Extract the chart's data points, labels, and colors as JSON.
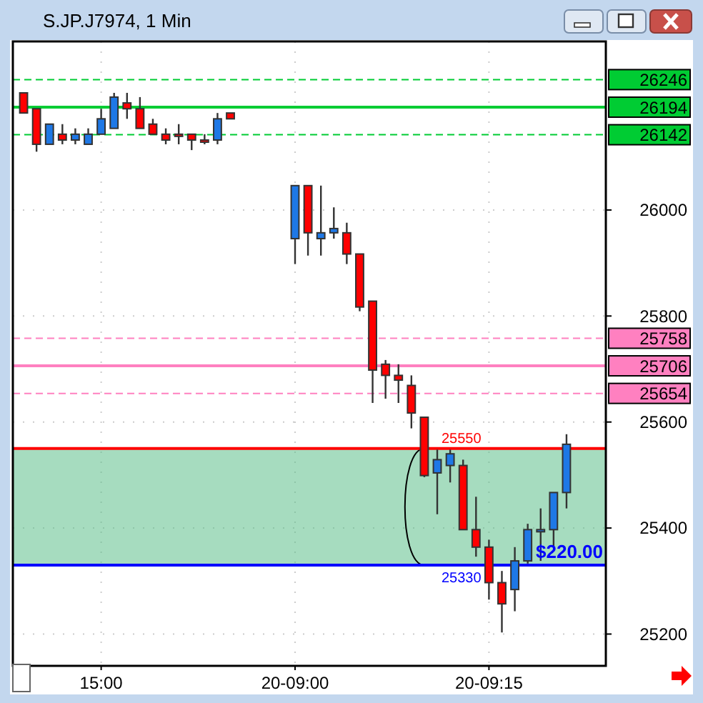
{
  "chart_data": {
    "type": "candlestick",
    "title": "S.JP.J7974, 1 Min",
    "categories": [
      null,
      null,
      null,
      null,
      null,
      null,
      "15:00",
      null,
      null,
      null,
      null,
      null,
      null,
      null,
      null,
      null,
      null,
      null,
      null,
      null,
      null,
      "20-09:00",
      null,
      null,
      null,
      null,
      null,
      null,
      null,
      null,
      null,
      null,
      null,
      null,
      null,
      null,
      "20-09:15",
      null,
      null,
      null,
      null,
      null,
      null
    ],
    "ohlc": [
      [
        26221,
        26221,
        26183,
        26183
      ],
      [
        26191,
        26191,
        26110,
        26124
      ],
      [
        26124,
        26162,
        26124,
        26162
      ],
      [
        26143,
        26162,
        26124,
        26132
      ],
      [
        26132,
        26154,
        26124,
        26143
      ],
      [
        26124,
        26154,
        26124,
        26143
      ],
      [
        26143,
        26191,
        26143,
        26172
      ],
      [
        26154,
        26221,
        26154,
        26213
      ],
      [
        26202,
        26221,
        26172,
        26191
      ],
      [
        26191,
        26213,
        26154,
        26154
      ],
      [
        26162,
        26172,
        26143,
        26143
      ],
      [
        26143,
        26154,
        26124,
        26132
      ],
      [
        26143,
        26162,
        26124,
        26143
      ],
      [
        26143,
        26143,
        26113,
        26132
      ],
      [
        26132,
        26143,
        26124,
        26132
      ],
      [
        26132,
        26183,
        26124,
        26172
      ],
      [
        26183,
        26183,
        26172,
        26172
      ],
      null,
      null,
      null,
      null,
      [
        25946,
        26046,
        25898,
        26046
      ],
      [
        26046,
        26046,
        25914,
        25957
      ],
      [
        25946,
        26046,
        25914,
        25957
      ],
      [
        25957,
        26005,
        25946,
        25965
      ],
      [
        25957,
        25976,
        25898,
        25917
      ],
      [
        25917,
        25917,
        25809,
        25817
      ],
      [
        25828,
        25828,
        25636,
        25698
      ],
      [
        25709,
        25717,
        25644,
        25688
      ],
      [
        25688,
        25709,
        25636,
        25679
      ],
      [
        25669,
        25688,
        25588,
        25617
      ],
      [
        25609,
        25609,
        25496,
        25499
      ],
      [
        25504,
        25548,
        25426,
        25529
      ],
      [
        25518,
        25548,
        25486,
        25540
      ],
      [
        25518,
        25529,
        25397,
        25397
      ],
      [
        25397,
        25459,
        25346,
        25364
      ],
      [
        25364,
        25378,
        25265,
        25297
      ],
      [
        25297,
        25319,
        25203,
        25257
      ],
      [
        25284,
        25364,
        25243,
        25338
      ],
      [
        25338,
        25408,
        25333,
        25397
      ],
      [
        25397,
        25437,
        25338,
        25397
      ],
      [
        25397,
        25467,
        25364,
        25467
      ],
      [
        25467,
        25577,
        25437,
        25558
      ]
    ],
    "colors": [
      "#ff0000",
      "#ff0000",
      "#1e78e6",
      "#ff0000",
      "#1e78e6",
      "#1e78e6",
      "#1e78e6",
      "#1e78e6",
      "#ff0000",
      "#ff0000",
      "#ff0000",
      "#ff0000",
      "#ff0000",
      "#ff0000",
      "#ff0000",
      "#1e78e6",
      "#ff0000",
      null,
      null,
      null,
      null,
      "#1e78e6",
      "#ff0000",
      "#1e78e6",
      "#1e78e6",
      "#ff0000",
      "#ff0000",
      "#ff0000",
      "#ff0000",
      "#ff0000",
      "#ff0000",
      "#ff0000",
      "#1e78e6",
      "#1e78e6",
      "#ff0000",
      "#ff0000",
      "#ff0000",
      "#ff0000",
      "#1e78e6",
      "#1e78e6",
      "#1e78e6",
      "#1e78e6",
      "#1e78e6"
    ],
    "ylim": [
      25140,
      26318
    ],
    "yticks": [
      25200,
      25400,
      25600,
      25800,
      26000
    ],
    "grid": true,
    "ref_lines": [
      {
        "axis": "y",
        "value": 26246,
        "label": "26246",
        "color": "#00cc33",
        "line_style": "dashed"
      },
      {
        "axis": "y",
        "value": 26194,
        "label": "26194",
        "color": "#00cc33",
        "line_style": "solid"
      },
      {
        "axis": "y",
        "value": 26142,
        "label": "26142",
        "color": "#00cc33",
        "line_style": "dashed"
      },
      {
        "axis": "y",
        "value": 25758,
        "label": "25758",
        "color": "#ff80c0",
        "line_style": "dashed"
      },
      {
        "axis": "y",
        "value": 25706,
        "label": "25706",
        "color": "#ff80c0",
        "line_style": "solid"
      },
      {
        "axis": "y",
        "value": 25654,
        "label": "25654",
        "color": "#ff80c0",
        "line_style": "dashed"
      },
      {
        "axis": "y",
        "value": 25550,
        "label": "25550",
        "color": "#ff0000"
      },
      {
        "axis": "y",
        "value": 25330,
        "label": "25330",
        "color": "#0000ff"
      }
    ],
    "bands": [
      {
        "axis": "y",
        "from": 25330,
        "to": 25550,
        "color": "#5cc08a"
      }
    ],
    "annotations": [
      "$220.00"
    ]
  }
}
